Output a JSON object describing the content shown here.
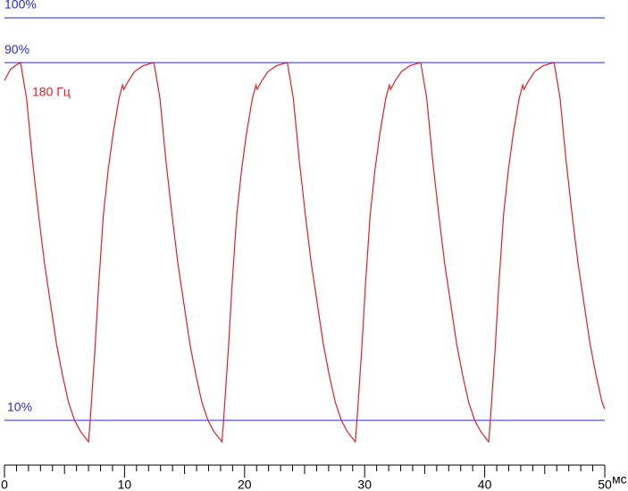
{
  "chart_data": {
    "type": "line",
    "x_label": "мс",
    "xlim": [
      0,
      50
    ],
    "xticks": [
      0,
      10,
      20,
      30,
      40,
      50
    ],
    "ylim": [
      0,
      100
    ],
    "reference_lines": [
      {
        "value": 100,
        "label": "100%"
      },
      {
        "value": 90,
        "label": "90%"
      },
      {
        "value": 10,
        "label": "10%"
      }
    ],
    "reference_color": "#2a2acc",
    "x": [
      0,
      0.5,
      1.0,
      1.34,
      1.84,
      2.34,
      2.84,
      3.34,
      3.84,
      4.34,
      4.84,
      5.34,
      5.84,
      6.34,
      7.0,
      7.14,
      7.54,
      7.84,
      8.24,
      8.64,
      9.04,
      9.54,
      9.84,
      9.94,
      10.34,
      10.84,
      11.54,
      12.45,
      12.95,
      13.45,
      13.95,
      14.45,
      14.95,
      15.45,
      15.95,
      16.45,
      16.95,
      17.45,
      18.11,
      18.25,
      18.65,
      18.95,
      19.35,
      19.75,
      20.15,
      20.65,
      20.95,
      21.05,
      21.45,
      21.95,
      22.65,
      23.56,
      24.06,
      24.56,
      25.06,
      25.56,
      26.06,
      26.56,
      27.06,
      27.56,
      28.06,
      28.56,
      29.22,
      29.36,
      29.76,
      30.06,
      30.46,
      30.86,
      31.26,
      31.76,
      32.06,
      32.16,
      32.56,
      33.06,
      33.76,
      34.67,
      35.17,
      35.67,
      36.17,
      36.67,
      37.17,
      37.67,
      38.17,
      38.67,
      39.17,
      39.67,
      40.33,
      40.47,
      40.87,
      41.17,
      41.57,
      41.97,
      42.37,
      42.87,
      43.17,
      43.27,
      43.67,
      44.17,
      44.87,
      45.78,
      46.28,
      46.78,
      47.28,
      47.78,
      48.28,
      48.78,
      49.28,
      49.78,
      50.0
    ],
    "series": [
      {
        "name": "180 Гц",
        "color": "#e0202a",
        "values": [
          86,
          88.5,
          89.5,
          90,
          82,
          68,
          56,
          45,
          36,
          27,
          20,
          14,
          10,
          7.5,
          5.2,
          10,
          26,
          40,
          56,
          66,
          74,
          82,
          85,
          84,
          86,
          88,
          89.3,
          90,
          82,
          68,
          56,
          45,
          36,
          27,
          20,
          14,
          10,
          7.5,
          5.2,
          10,
          26,
          40,
          56,
          66,
          74,
          82,
          85,
          84,
          86,
          88,
          89.3,
          90,
          82,
          68,
          56,
          45,
          36,
          27,
          20,
          14,
          10,
          7.5,
          5.2,
          10,
          26,
          40,
          56,
          66,
          74,
          82,
          85,
          84,
          86,
          88,
          89.3,
          90,
          82,
          68,
          56,
          45,
          36,
          27,
          20,
          14,
          10,
          7.5,
          5.2,
          10,
          26,
          40,
          56,
          66,
          74,
          82,
          85,
          84,
          86,
          88,
          89.3,
          90,
          82,
          68,
          56,
          45,
          36,
          27,
          20,
          14,
          12.5
        ]
      }
    ]
  }
}
